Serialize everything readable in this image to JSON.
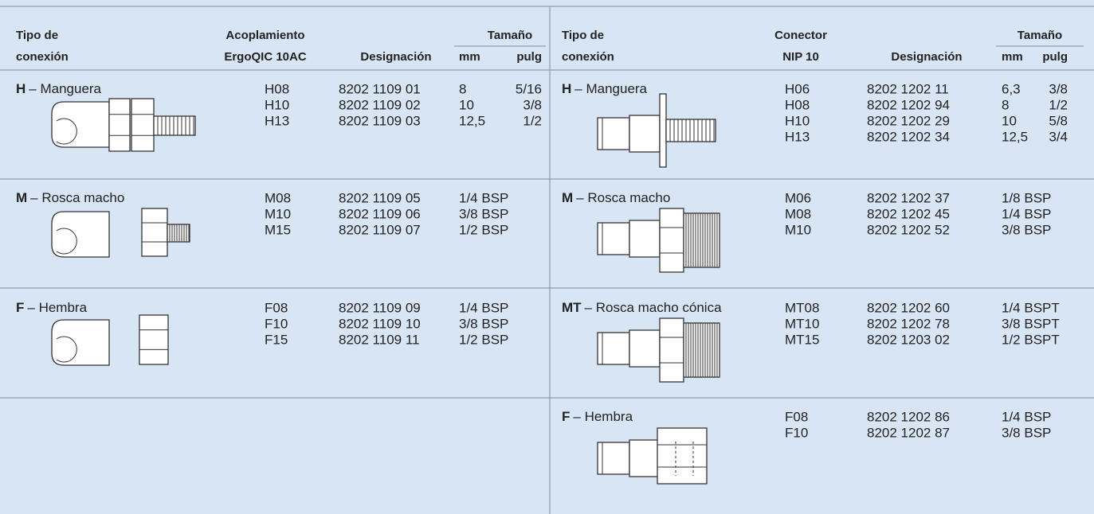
{
  "left": {
    "header": {
      "type": [
        "Tipo de",
        "conexión"
      ],
      "coupling": [
        "Acoplamiento",
        "ErgoQIC 10AC"
      ],
      "designation": "Designación",
      "size": "Tamaño",
      "mm": "mm",
      "inch": "pulg"
    },
    "rows": [
      {
        "letter": "H",
        "name": "– Manguera",
        "items": [
          {
            "code": "H08",
            "designation": "8202 1109 01",
            "mm": "8",
            "inch": "5/16"
          },
          {
            "code": "H10",
            "designation": "8202 1109 02",
            "mm": "10",
            "inch": "3/8"
          },
          {
            "code": "H13",
            "designation": "8202 1109 03",
            "mm": "12,5",
            "inch": "1/2"
          }
        ]
      },
      {
        "letter": "M",
        "name": "– Rosca macho",
        "items": [
          {
            "code": "M08",
            "designation": "8202 1109 05",
            "size": "1/4 BSP"
          },
          {
            "code": "M10",
            "designation": "8202 1109 06",
            "size": "3/8 BSP"
          },
          {
            "code": "M15",
            "designation": "8202 1109 07",
            "size": "1/2 BSP"
          }
        ]
      },
      {
        "letter": "F",
        "name": "– Hembra",
        "items": [
          {
            "code": "F08",
            "designation": "8202 1109 09",
            "size": "1/4 BSP"
          },
          {
            "code": "F10",
            "designation": "8202 1109 10",
            "size": "3/8 BSP"
          },
          {
            "code": "F15",
            "designation": "8202 1109 11",
            "size": "1/2 BSP"
          }
        ]
      }
    ]
  },
  "right": {
    "header": {
      "type": [
        "Tipo de",
        "conexión"
      ],
      "coupling": [
        "Conector",
        "NIP 10"
      ],
      "designation": "Designación",
      "size": "Tamaño",
      "mm": "mm",
      "inch": "pulg"
    },
    "rows": [
      {
        "letter": "H",
        "name": "– Manguera",
        "items": [
          {
            "code": "H06",
            "designation": "8202 1202 11",
            "mm": "6,3",
            "inch": "3/8"
          },
          {
            "code": "H08",
            "designation": "8202 1202 94",
            "mm": "8",
            "inch": "1/2"
          },
          {
            "code": "H10",
            "designation": "8202 1202 29",
            "mm": "10",
            "inch": "5/8"
          },
          {
            "code": "H13",
            "designation": "8202 1202 34",
            "mm": "12,5",
            "inch": "3/4"
          }
        ]
      },
      {
        "letter": "M",
        "name": "– Rosca macho",
        "items": [
          {
            "code": "M06",
            "designation": "8202 1202 37",
            "size": "1/8 BSP"
          },
          {
            "code": "M08",
            "designation": "8202 1202 45",
            "size": "1/4 BSP"
          },
          {
            "code": "M10",
            "designation": "8202 1202 52",
            "size": "3/8 BSP"
          }
        ]
      },
      {
        "letter": "MT",
        "name": "– Rosca macho cónica",
        "items": [
          {
            "code": "MT08",
            "designation": "8202 1202 60",
            "size": "1/4 BSPT"
          },
          {
            "code": "MT10",
            "designation": "8202 1202 78",
            "size": "3/8 BSPT"
          },
          {
            "code": "MT15",
            "designation": "8202 1203 02",
            "size": "1/2 BSPT"
          }
        ]
      },
      {
        "letter": "F",
        "name": "– Hembra",
        "items": [
          {
            "code": "F08",
            "designation": "8202 1202 86",
            "size": "1/4 BSP"
          },
          {
            "code": "F10",
            "designation": "8202 1202 87",
            "size": "3/8 BSP"
          }
        ]
      }
    ]
  }
}
